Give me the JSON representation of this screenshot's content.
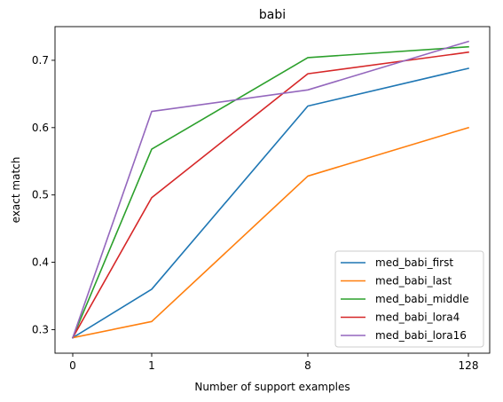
{
  "chart_data": {
    "type": "line",
    "title": "babi",
    "xlabel": "Number of support examples",
    "ylabel": "exact match",
    "categories": [
      "0",
      "1",
      "8",
      "128"
    ],
    "x_scale": "categorical-uneven",
    "ylim": [
      0.265,
      0.75
    ],
    "yticks": [
      "0.3",
      "0.4",
      "0.5",
      "0.6",
      "0.7"
    ],
    "grid": false,
    "legend_position": "lower-right",
    "series": [
      {
        "name": "med_babi_first",
        "color": "#1f77b4",
        "values": [
          0.288,
          0.36,
          0.632,
          0.688
        ]
      },
      {
        "name": "med_babi_last",
        "color": "#ff7f0e",
        "values": [
          0.288,
          0.312,
          0.528,
          0.6
        ]
      },
      {
        "name": "med_babi_middle",
        "color": "#2ca02c",
        "values": [
          0.288,
          0.568,
          0.704,
          0.72
        ]
      },
      {
        "name": "med_babi_lora4",
        "color": "#d62728",
        "values": [
          0.288,
          0.496,
          0.68,
          0.712
        ]
      },
      {
        "name": "med_babi_lora16",
        "color": "#9467bd",
        "values": [
          0.288,
          0.624,
          0.656,
          0.728
        ]
      }
    ]
  }
}
